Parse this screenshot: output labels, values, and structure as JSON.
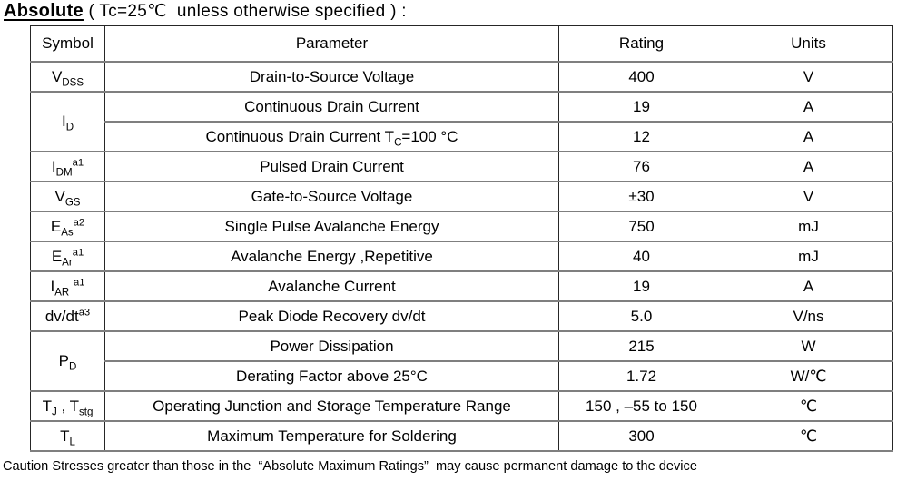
{
  "title": {
    "bold": "Absolute",
    "rest": " ( Tc=25℃  unless otherwise specified ) :"
  },
  "table": {
    "headers": [
      "Symbol",
      "Parameter",
      "Rating",
      "Units"
    ],
    "rows": [
      {
        "symbol": [
          [
            "V"
          ],
          [
            "DSS",
            "sub"
          ]
        ],
        "symbol_rowspan": 1,
        "parameter": [
          [
            "Drain-to-Source Voltage"
          ]
        ],
        "rating": "400",
        "units": "V"
      },
      {
        "symbol": [
          [
            "I"
          ],
          [
            "D",
            "sub"
          ]
        ],
        "symbol_rowspan": 2,
        "parameter": [
          [
            "Continuous Drain Current"
          ]
        ],
        "rating": "19",
        "units": "A"
      },
      {
        "parameter": [
          [
            "Continuous Drain Current T"
          ],
          [
            "C",
            "sub"
          ],
          [
            "=100 °C"
          ]
        ],
        "rating": "12",
        "units": "A"
      },
      {
        "symbol": [
          [
            "I"
          ],
          [
            "DM",
            "sub"
          ],
          [
            "a1",
            "sup"
          ]
        ],
        "symbol_rowspan": 1,
        "parameter": [
          [
            "Pulsed Drain Current"
          ]
        ],
        "rating": "76",
        "units": "A"
      },
      {
        "symbol": [
          [
            "V"
          ],
          [
            "GS",
            "sub"
          ]
        ],
        "symbol_rowspan": 1,
        "parameter": [
          [
            "Gate-to-Source Voltage"
          ]
        ],
        "rating": "±30",
        "units": "V"
      },
      {
        "symbol": [
          [
            "E"
          ],
          [
            "As",
            "sub"
          ],
          [
            "a2",
            "sup"
          ]
        ],
        "symbol_rowspan": 1,
        "parameter": [
          [
            "Single Pulse Avalanche Energy"
          ]
        ],
        "rating": "750",
        "units": "mJ"
      },
      {
        "symbol": [
          [
            "E"
          ],
          [
            "Ar",
            "sub"
          ],
          [
            "a1",
            "sup"
          ]
        ],
        "symbol_rowspan": 1,
        "parameter": [
          [
            "Avalanche Energy ,Repetitive"
          ]
        ],
        "rating": "40",
        "units": "mJ"
      },
      {
        "symbol": [
          [
            "I"
          ],
          [
            "AR",
            "sub"
          ],
          [
            " "
          ],
          [
            "a1",
            "sup"
          ]
        ],
        "symbol_rowspan": 1,
        "parameter": [
          [
            "Avalanche Current"
          ]
        ],
        "rating": "19",
        "units": "A"
      },
      {
        "symbol": [
          [
            "dv/dt"
          ],
          [
            "a3",
            "sup"
          ]
        ],
        "symbol_rowspan": 1,
        "parameter": [
          [
            "Peak Diode Recovery dv/dt"
          ]
        ],
        "rating": "5.0",
        "units": "V/ns"
      },
      {
        "symbol": [
          [
            "P"
          ],
          [
            "D",
            "sub"
          ]
        ],
        "symbol_rowspan": 2,
        "parameter": [
          [
            "Power Dissipation"
          ]
        ],
        "rating": "215",
        "units": "W"
      },
      {
        "parameter": [
          [
            "Derating Factor above 25°C"
          ]
        ],
        "rating": "1.72",
        "units": "W/℃"
      },
      {
        "symbol": [
          [
            "T"
          ],
          [
            "J",
            "sub"
          ],
          [
            " , "
          ],
          [
            "T"
          ],
          [
            "stg",
            "sub"
          ]
        ],
        "symbol_rowspan": 1,
        "parameter": [
          [
            "Operating Junction and Storage Temperature Range"
          ]
        ],
        "rating": "150 , –55 to 150",
        "units": "℃"
      },
      {
        "symbol": [
          [
            "T"
          ],
          [
            "L",
            "sub"
          ]
        ],
        "symbol_rowspan": 1,
        "parameter": [
          [
            "Maximum Temperature for Soldering"
          ]
        ],
        "rating": "300",
        "units": "℃"
      }
    ]
  },
  "footer": "Caution Stresses greater than those in the  “Absolute Maximum Ratings”  may cause permanent damage to the device"
}
